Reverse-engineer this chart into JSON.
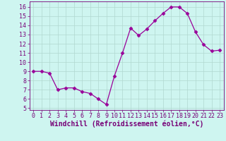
{
  "x": [
    0,
    1,
    2,
    3,
    4,
    5,
    6,
    7,
    8,
    9,
    10,
    11,
    12,
    13,
    14,
    15,
    16,
    17,
    18,
    19,
    20,
    21,
    22,
    23
  ],
  "y": [
    9.0,
    9.0,
    8.8,
    7.0,
    7.2,
    7.2,
    6.8,
    6.6,
    6.0,
    5.4,
    8.5,
    11.0,
    13.7,
    12.9,
    13.6,
    14.5,
    15.3,
    16.0,
    16.0,
    15.3,
    13.3,
    11.9,
    11.2,
    11.3
  ],
  "line_color": "#990099",
  "marker": "D",
  "marker_size": 2.5,
  "bg_color": "#cef5f0",
  "grid_color": "#b0d8d0",
  "xlim": [
    -0.5,
    23.5
  ],
  "ylim": [
    4.8,
    16.6
  ],
  "yticks": [
    5,
    6,
    7,
    8,
    9,
    10,
    11,
    12,
    13,
    14,
    15,
    16
  ],
  "xticks": [
    0,
    1,
    2,
    3,
    4,
    5,
    6,
    7,
    8,
    9,
    10,
    11,
    12,
    13,
    14,
    15,
    16,
    17,
    18,
    19,
    20,
    21,
    22,
    23
  ],
  "xlabel": "Windchill (Refroidissement éolien,°C)",
  "xlabel_color": "#770077",
  "tick_color": "#770077",
  "axis_color": "#770077",
  "tick_fontsize": 6.0,
  "xlabel_fontsize": 7.0
}
